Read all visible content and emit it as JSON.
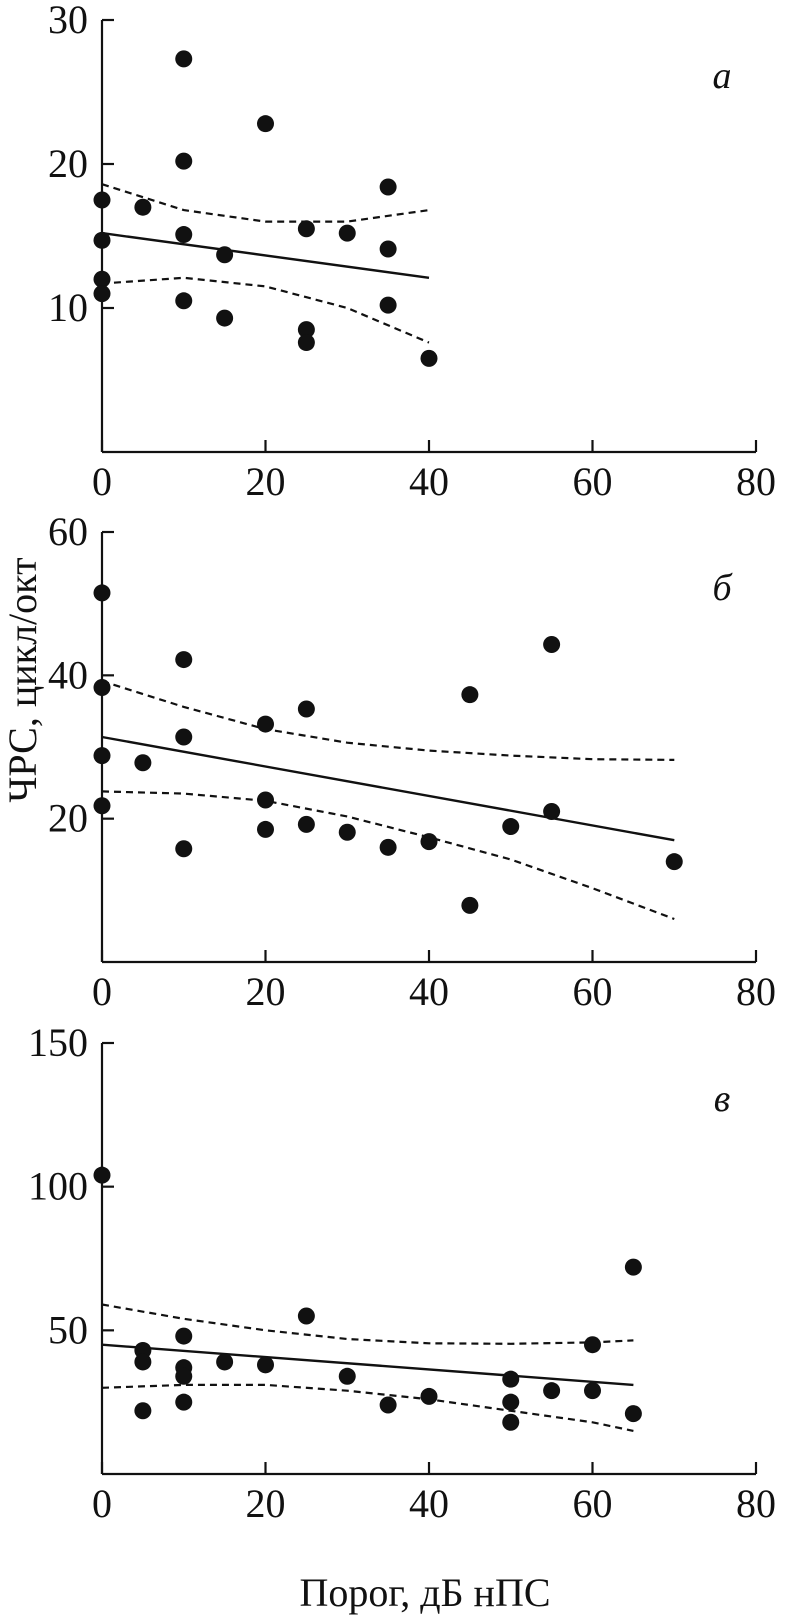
{
  "xlabel": "Порог, дБ нПС",
  "ylabel": "ЧРС, цикл/окт",
  "chart_data": [
    {
      "type": "scatter",
      "panel_label": "а",
      "xlim": [
        0,
        80
      ],
      "ylim": [
        0,
        30
      ],
      "x_ticks": [
        0,
        20,
        40,
        60,
        80
      ],
      "y_ticks": [
        10,
        20,
        30
      ],
      "points": {
        "x": [
          0,
          0,
          0,
          0,
          5,
          10,
          10,
          10,
          10,
          15,
          15,
          20,
          25,
          25,
          25,
          30,
          35,
          35,
          35,
          40
        ],
        "y": [
          17.5,
          14.7,
          12.0,
          11.0,
          17.0,
          27.3,
          20.2,
          15.1,
          10.5,
          13.7,
          9.3,
          22.8,
          15.5,
          8.5,
          7.6,
          15.2,
          18.4,
          14.1,
          10.2,
          6.5
        ]
      },
      "fit": {
        "x": [
          0,
          40
        ],
        "y": [
          15.2,
          12.1
        ]
      },
      "ci_upper": {
        "x": [
          0,
          10,
          20,
          30,
          40
        ],
        "y": [
          18.6,
          16.8,
          16.0,
          16.0,
          16.8
        ]
      },
      "ci_lower": {
        "x": [
          0,
          10,
          20,
          30,
          40
        ],
        "y": [
          11.7,
          12.1,
          11.5,
          10.0,
          7.6
        ]
      }
    },
    {
      "type": "scatter",
      "panel_label": "б",
      "xlim": [
        0,
        80
      ],
      "ylim": [
        0,
        60
      ],
      "x_ticks": [
        0,
        20,
        40,
        60,
        80
      ],
      "y_ticks": [
        20,
        40,
        60
      ],
      "points": {
        "x": [
          0,
          0,
          0,
          0,
          5,
          10,
          10,
          10,
          20,
          20,
          20,
          25,
          25,
          30,
          35,
          40,
          45,
          45,
          50,
          55,
          55,
          70
        ],
        "y": [
          51.5,
          38.3,
          28.8,
          21.8,
          27.8,
          42.2,
          31.4,
          15.8,
          33.2,
          22.6,
          18.5,
          35.3,
          19.2,
          18.1,
          16.0,
          16.8,
          37.3,
          7.9,
          18.9,
          44.3,
          21.0,
          14.0
        ]
      },
      "fit": {
        "x": [
          0,
          70
        ],
        "y": [
          31.4,
          17.0
        ]
      },
      "ci_upper": {
        "x": [
          0,
          10,
          20,
          30,
          40,
          50,
          60,
          70
        ],
        "y": [
          39.2,
          35.6,
          32.5,
          30.6,
          29.5,
          28.8,
          28.3,
          28.2
        ]
      },
      "ci_lower": {
        "x": [
          0,
          10,
          20,
          30,
          40,
          50,
          60,
          70
        ],
        "y": [
          23.8,
          23.5,
          22.5,
          20.3,
          17.4,
          14.3,
          10.3,
          6.0
        ]
      }
    },
    {
      "type": "scatter",
      "panel_label": "в",
      "xlim": [
        0,
        80
      ],
      "ylim": [
        0,
        150
      ],
      "x_ticks": [
        0,
        20,
        40,
        60,
        80
      ],
      "y_ticks": [
        50,
        100,
        150
      ],
      "points": {
        "x": [
          0,
          5,
          5,
          5,
          10,
          10,
          10,
          10,
          15,
          20,
          25,
          30,
          35,
          40,
          50,
          50,
          50,
          55,
          60,
          60,
          65,
          65
        ],
        "y": [
          104,
          43,
          39,
          22,
          48,
          37,
          34,
          25,
          39,
          38,
          55,
          34,
          24,
          27,
          33,
          25,
          18,
          29,
          45,
          29,
          72,
          21
        ]
      },
      "fit": {
        "x": [
          0,
          65
        ],
        "y": [
          45,
          31
        ]
      },
      "ci_upper": {
        "x": [
          0,
          10,
          20,
          30,
          40,
          50,
          60,
          65
        ],
        "y": [
          59,
          54,
          50,
          47,
          45.5,
          45.3,
          45.8,
          46.5
        ]
      },
      "ci_lower": {
        "x": [
          0,
          10,
          20,
          30,
          40,
          50,
          60,
          65
        ],
        "y": [
          30,
          31,
          31,
          29,
          26,
          22,
          18,
          15
        ]
      }
    }
  ]
}
